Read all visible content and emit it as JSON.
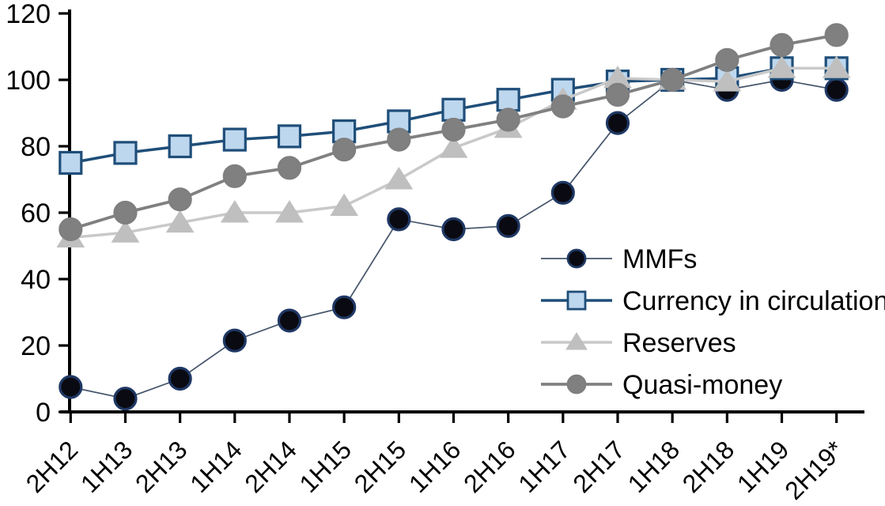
{
  "chart_data": {
    "type": "line",
    "title": "",
    "xlabel": "",
    "ylabel": "",
    "grid": false,
    "ylim": [
      0,
      120
    ],
    "yticks": [
      0,
      20,
      40,
      60,
      80,
      100,
      120
    ],
    "legend_position": "inside-center-right",
    "categories": [
      "2H12",
      "1H13",
      "2H13",
      "1H14",
      "2H14",
      "1H15",
      "2H15",
      "1H16",
      "2H16",
      "1H17",
      "2H17",
      "1H18",
      "2H18",
      "1H19",
      "2H19*"
    ],
    "series": [
      {
        "name": "MMFs",
        "marker": "circle",
        "marker_fill": "#0a0a12",
        "marker_stroke": "#1f3864",
        "line_color": "#44546a",
        "line_width": 1.7,
        "values": [
          7.5,
          4,
          10,
          21.5,
          27.5,
          31.5,
          58,
          55,
          56,
          66,
          87,
          100,
          97,
          100,
          97
        ]
      },
      {
        "name": "Currency in circulation",
        "marker": "square",
        "marker_fill": "#bdd7ee",
        "marker_stroke": "#1f4e79",
        "line_color": "#1f4e79",
        "line_width": 3.5,
        "values": [
          75,
          78,
          80,
          82,
          83,
          84.5,
          87.5,
          91,
          94,
          97,
          99.5,
          100,
          100.5,
          103.5,
          103.5
        ]
      },
      {
        "name": "Reserves",
        "marker": "triangle",
        "marker_fill": "#bfbfbf",
        "marker_stroke": "#bfbfbf",
        "line_color": "#c9c9c9",
        "line_width": 3.5,
        "values": [
          52.5,
          54,
          57,
          60,
          60,
          62,
          70,
          79.5,
          85.5,
          94,
          100.5,
          100,
          99.5,
          103.5,
          103.5
        ]
      },
      {
        "name": "Quasi-money",
        "marker": "circle",
        "marker_fill": "#808080",
        "marker_stroke": "#7f7f7f",
        "line_color": "#808080",
        "line_width": 3.8,
        "values": [
          55,
          60,
          64,
          71,
          73.5,
          79,
          82,
          85,
          88,
          92,
          95.5,
          100,
          106,
          110.5,
          113.5
        ]
      }
    ],
    "axis_color": "#000000"
  }
}
